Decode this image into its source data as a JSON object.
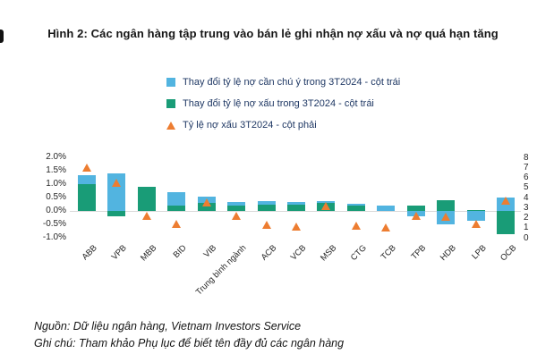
{
  "title": "Hình 2: Các ngân hàng tập trung vào bán lẻ ghi nhận nợ xấu và nợ quá hạn tăng",
  "legend": [
    {
      "label": "Thay đổi tỷ lệ nợ cần chú ý trong 3T2024 - cột trái",
      "marker": "square",
      "color": "#52B4E0"
    },
    {
      "label": "Thay đổi tỷ lệ nợ xấu trong 3T2024 - cột trái",
      "marker": "square",
      "color": "#199C77"
    },
    {
      "label": "Tỷ lệ nợ xấu 3T2024 - cột phải",
      "marker": "triangle",
      "color": "#ED7D31"
    }
  ],
  "chart_data": {
    "type": "bar",
    "subtype": "stacked bars with scatter triangles on secondary axis",
    "categories": [
      "ABB",
      "VPB",
      "MBB",
      "BID",
      "VIB",
      "Trung bình ngành",
      "ACB",
      "VCB",
      "MSB",
      "CTG",
      "TCB",
      "TPB",
      "HDB",
      "LPB",
      "OCB"
    ],
    "series": [
      {
        "name": "Thay đổi tỷ lệ nợ xấu trong 3T2024 - cột trái",
        "render": "stacked-bar",
        "axis": "left",
        "color": "#199C77",
        "values": [
          1.0,
          -0.2,
          0.9,
          0.2,
          0.3,
          0.2,
          0.22,
          0.22,
          0.3,
          0.2,
          0.0,
          0.2,
          0.4,
          0.05,
          -0.85
        ]
      },
      {
        "name": "Thay đổi tỷ lệ nợ cần chú ý trong 3T2024 - cột trái",
        "render": "stacked-bar",
        "axis": "left",
        "color": "#52B4E0",
        "values": [
          0.35,
          1.4,
          0.0,
          0.5,
          0.25,
          0.15,
          0.14,
          0.12,
          0.06,
          0.06,
          0.2,
          -0.2,
          -0.5,
          -0.38,
          0.5
        ]
      },
      {
        "name": "Tỷ lệ nợ xấu 3T2024 - cột phải",
        "render": "triangle-marker",
        "axis": "right",
        "color": "#ED7D31",
        "values": [
          7.0,
          5.5,
          2.2,
          1.4,
          3.5,
          2.2,
          1.3,
          1.1,
          3.2,
          1.2,
          1.0,
          2.2,
          2.1,
          1.35,
          3.7
        ]
      }
    ],
    "left_axis": {
      "min": -1.0,
      "max": 2.0,
      "tick_labels": [
        "2.0%",
        "1.5%",
        "1.0%",
        "0.5%",
        "0.0%",
        "-0.5%",
        "-1.0%"
      ],
      "tick_values": [
        2.0,
        1.5,
        1.0,
        0.5,
        0.0,
        -0.5,
        -1.0
      ]
    },
    "right_axis": {
      "min": 0,
      "max": 8,
      "tick_labels": [
        "8",
        "7",
        "6",
        "5",
        "4",
        "3",
        "2",
        "1",
        "0"
      ],
      "tick_values": [
        8,
        7,
        6,
        5,
        4,
        3,
        2,
        1,
        0
      ]
    },
    "gridlines": "zero line only",
    "gridline_color": "#D9D9D9",
    "legend_position": "top"
  },
  "footer": {
    "source": "Nguồn: Dữ liệu ngân hàng, Vietnam Investors Service",
    "note": "Ghi chú: Tham khảo Phụ lục để biết tên đầy đủ các ngân hàng"
  }
}
